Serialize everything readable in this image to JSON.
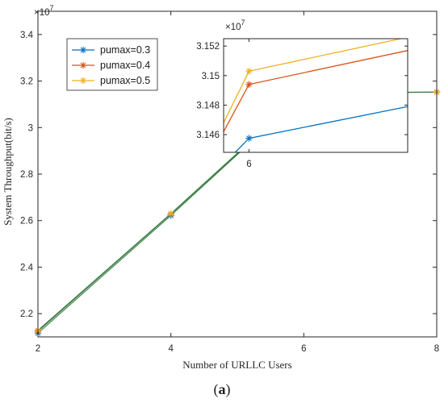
{
  "caption": {
    "open": "(",
    "letter": "a",
    "close": ")"
  },
  "chart_data": [
    {
      "type": "line",
      "xlabel": "Number of URLLC Users",
      "ylabel": "System Throughput(bit/s)",
      "y_multiplier": "×10",
      "y_exponent": "7",
      "xlim": [
        2,
        8
      ],
      "ylim": [
        2.1,
        3.5
      ],
      "x_ticks": [
        "2",
        "4",
        "6",
        "8"
      ],
      "y_ticks": [
        "2.2",
        "2.4",
        "2.6",
        "2.8",
        "3",
        "3.2",
        "3.4"
      ],
      "legend_position": "top-left",
      "grid": false,
      "x": [
        2,
        4,
        6,
        8
      ],
      "series": [
        {
          "name": "pumax=0.3",
          "color": "#0072BD",
          "marker": "star",
          "values": [
            2.116,
            2.622,
            3.1457,
            3.1525
          ]
        },
        {
          "name": "pumax=0.4",
          "color": "#D95319",
          "marker": "star",
          "values": [
            2.124,
            2.628,
            3.1494,
            3.1525
          ]
        },
        {
          "name": "pumax=0.5",
          "color": "#EDB120",
          "marker": "star",
          "values": [
            2.128,
            2.63,
            3.1503,
            3.1525
          ]
        }
      ],
      "line_color": "#3a7d44"
    },
    {
      "type": "line",
      "inset": true,
      "y_multiplier": "×10",
      "y_exponent": "7",
      "xlim": [
        5.8,
        7.25
      ],
      "ylim": [
        3.1448,
        3.1525
      ],
      "x_ticks": [
        "6"
      ],
      "y_ticks": [
        "3.146",
        "3.148",
        "3.15",
        "3.152"
      ],
      "x": [
        5.8,
        6.0,
        7.25
      ],
      "series": [
        {
          "name": "pumax=0.3",
          "color": "#0072BD",
          "values": [
            3.144,
            3.14575,
            3.1479
          ]
        },
        {
          "name": "pumax=0.4",
          "color": "#D95319",
          "values": [
            3.1462,
            3.1494,
            3.1517
          ]
        },
        {
          "name": "pumax=0.5",
          "color": "#EDB120",
          "values": [
            3.1468,
            3.1503,
            3.1526
          ]
        }
      ]
    }
  ]
}
